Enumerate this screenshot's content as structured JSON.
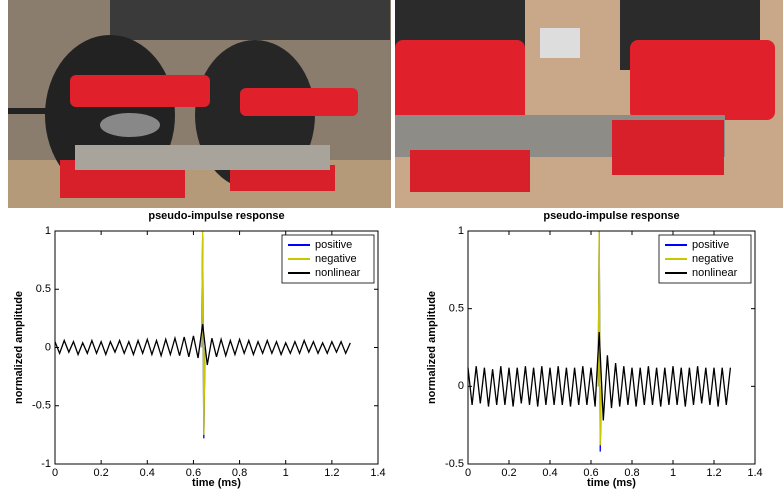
{
  "chart_data": [
    {
      "type": "line",
      "title": "pseudo-impulse response",
      "xlabel": "time (ms)",
      "ylabel": "normalized amplitude",
      "xlim": [
        0,
        1.4
      ],
      "xticks": [
        0,
        0.2,
        0.4,
        0.6,
        0.8,
        1,
        1.2,
        1.4
      ],
      "ylim": [
        -1,
        1
      ],
      "yticks": [
        -1,
        -0.5,
        0,
        0.5,
        1
      ],
      "grid": false,
      "legend": "upper right",
      "series": [
        {
          "name": "positive",
          "color": "#0000ff",
          "x": [
            0.635,
            0.64,
            0.645,
            0.65
          ],
          "values": [
            0,
            0.95,
            -0.78,
            0
          ]
        },
        {
          "name": "negative",
          "color": "#c8c800",
          "x": [
            0.635,
            0.64,
            0.645,
            0.65
          ],
          "values": [
            0,
            1,
            -0.75,
            0
          ]
        },
        {
          "name": "nonlinear",
          "color": "#000000",
          "x": [
            0,
            0.02,
            0.04,
            0.06,
            0.08,
            0.1,
            0.12,
            0.14,
            0.16,
            0.18,
            0.2,
            0.22,
            0.24,
            0.26,
            0.28,
            0.3,
            0.32,
            0.34,
            0.36,
            0.38,
            0.4,
            0.42,
            0.44,
            0.46,
            0.48,
            0.5,
            0.52,
            0.54,
            0.56,
            0.58,
            0.6,
            0.62,
            0.64,
            0.66,
            0.68,
            0.7,
            0.72,
            0.74,
            0.76,
            0.78,
            0.8,
            0.82,
            0.84,
            0.86,
            0.88,
            0.9,
            0.92,
            0.94,
            0.96,
            0.98,
            1,
            1.02,
            1.04,
            1.06,
            1.08,
            1.1,
            1.12,
            1.14,
            1.16,
            1.18,
            1.2,
            1.22,
            1.24,
            1.26,
            1.28
          ],
          "values": [
            0.05,
            -0.05,
            0.06,
            -0.04,
            0.05,
            -0.06,
            0.04,
            -0.05,
            0.06,
            -0.05,
            0.05,
            -0.06,
            0.05,
            -0.04,
            0.06,
            -0.05,
            0.05,
            -0.06,
            0.06,
            -0.05,
            0.07,
            -0.06,
            0.06,
            -0.07,
            0.07,
            -0.06,
            0.08,
            -0.07,
            0.09,
            -0.08,
            0.1,
            -0.09,
            0.2,
            -0.15,
            0.08,
            -0.08,
            0.07,
            -0.07,
            0.06,
            -0.06,
            0.07,
            -0.05,
            0.06,
            -0.06,
            0.05,
            -0.05,
            0.06,
            -0.05,
            0.05,
            -0.06,
            0.04,
            -0.05,
            0.05,
            -0.05,
            0.06,
            -0.04,
            0.05,
            -0.05,
            0.04,
            -0.05,
            0.05,
            -0.04,
            0.05,
            -0.05,
            0.04
          ]
        }
      ]
    },
    {
      "type": "line",
      "title": "pseudo-impulse response",
      "xlabel": "time (ms)",
      "ylabel": "normalized amplitude",
      "xlim": [
        0,
        1.4
      ],
      "xticks": [
        0,
        0.2,
        0.4,
        0.6,
        0.8,
        1,
        1.2,
        1.4
      ],
      "ylim": [
        -0.5,
        1
      ],
      "yticks": [
        -0.5,
        0,
        0.5,
        1
      ],
      "grid": false,
      "legend": "upper right",
      "series": [
        {
          "name": "positive",
          "color": "#0000ff",
          "x": [
            0.635,
            0.64,
            0.645,
            0.65
          ],
          "values": [
            0,
            1,
            -0.42,
            0
          ]
        },
        {
          "name": "negative",
          "color": "#c8c800",
          "x": [
            0.635,
            0.64,
            0.645,
            0.65
          ],
          "values": [
            0,
            1,
            -0.38,
            0
          ]
        },
        {
          "name": "nonlinear",
          "color": "#000000",
          "x": [
            0,
            0.02,
            0.04,
            0.06,
            0.08,
            0.1,
            0.12,
            0.14,
            0.16,
            0.18,
            0.2,
            0.22,
            0.24,
            0.26,
            0.28,
            0.3,
            0.32,
            0.34,
            0.36,
            0.38,
            0.4,
            0.42,
            0.44,
            0.46,
            0.48,
            0.5,
            0.52,
            0.54,
            0.56,
            0.58,
            0.6,
            0.62,
            0.64,
            0.66,
            0.68,
            0.7,
            0.72,
            0.74,
            0.76,
            0.78,
            0.8,
            0.82,
            0.84,
            0.86,
            0.88,
            0.9,
            0.92,
            0.94,
            0.96,
            0.98,
            1,
            1.02,
            1.04,
            1.06,
            1.08,
            1.1,
            1.12,
            1.14,
            1.16,
            1.18,
            1.2,
            1.22,
            1.24,
            1.26,
            1.28
          ],
          "values": [
            0.12,
            -0.12,
            0.13,
            -0.11,
            0.12,
            -0.13,
            0.11,
            -0.12,
            0.13,
            -0.12,
            0.12,
            -0.13,
            0.12,
            -0.11,
            0.13,
            -0.12,
            0.12,
            -0.13,
            0.13,
            -0.12,
            0.12,
            -0.12,
            0.13,
            -0.12,
            0.12,
            -0.13,
            0.12,
            -0.12,
            0.13,
            -0.12,
            0.12,
            -0.13,
            0.35,
            -0.22,
            0.2,
            -0.14,
            0.15,
            -0.13,
            0.13,
            -0.12,
            0.12,
            -0.13,
            0.12,
            -0.12,
            0.13,
            -0.12,
            0.12,
            -0.13,
            0.12,
            -0.12,
            0.13,
            -0.12,
            0.12,
            -0.13,
            0.12,
            -0.12,
            0.13,
            -0.11,
            0.12,
            -0.12,
            0.12,
            -0.13,
            0.12,
            -0.12,
            0.12
          ]
        }
      ]
    }
  ]
}
